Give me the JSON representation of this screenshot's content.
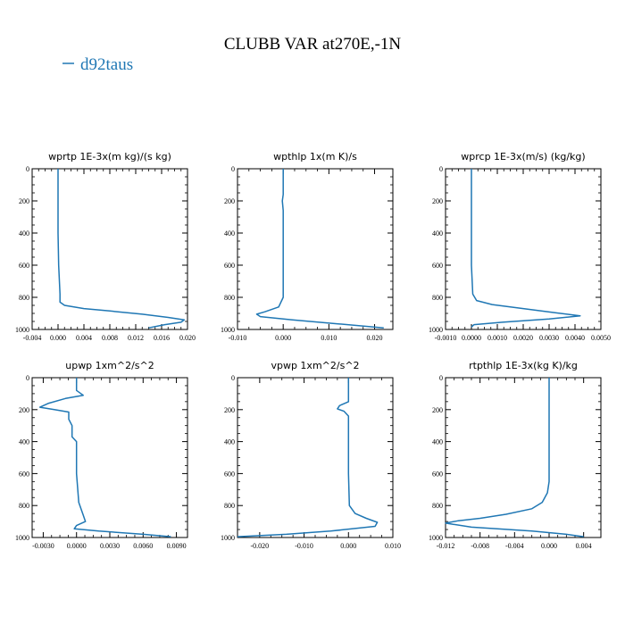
{
  "figure": {
    "title": "CLUBB VAR at270E,-1N",
    "legend_label": "d92taus",
    "line_color": "#1f77b4"
  },
  "chart_data": [
    {
      "type": "line",
      "title": "wprtp  1E-3x(m kg)/(s kg)",
      "series_name": "d92taus",
      "xlim": [
        -0.004,
        0.02
      ],
      "ylim": [
        1000,
        0
      ],
      "x_ticks": [
        -0.004,
        0.0,
        0.004,
        0.008,
        0.012,
        0.016,
        0.02
      ],
      "x_tick_labels": [
        "-0.004",
        "0.000",
        "0.004",
        "0.008",
        "0.012",
        "0.016",
        "0.020"
      ],
      "y_ticks": [
        0,
        200,
        400,
        600,
        800,
        1000
      ],
      "y_tick_labels": [
        "0",
        "200",
        "400",
        "600",
        "800",
        "1000"
      ],
      "points": [
        [
          0.0,
          0
        ],
        [
          0.0,
          200
        ],
        [
          0.0,
          400
        ],
        [
          0.0001,
          600
        ],
        [
          0.0003,
          780
        ],
        [
          0.0003,
          830
        ],
        [
          0.001,
          850
        ],
        [
          0.004,
          870
        ],
        [
          0.008,
          885
        ],
        [
          0.013,
          905
        ],
        [
          0.017,
          925
        ],
        [
          0.0195,
          940
        ],
        [
          0.019,
          955
        ],
        [
          0.0165,
          970
        ],
        [
          0.014,
          990
        ]
      ]
    },
    {
      "type": "line",
      "title": "wpthlp  1x(m K)/s",
      "series_name": "d92taus",
      "xlim": [
        -0.01,
        0.024
      ],
      "ylim": [
        1000,
        0
      ],
      "x_ticks": [
        -0.01,
        0.0,
        0.01,
        0.02
      ],
      "x_tick_labels": [
        "-0.010",
        "0.000",
        "0.010",
        "0.020"
      ],
      "y_ticks": [
        0,
        200,
        400,
        600,
        800,
        1000
      ],
      "y_tick_labels": [
        "0",
        "200",
        "400",
        "600",
        "800",
        "1000"
      ],
      "points": [
        [
          0.0,
          0
        ],
        [
          0.0,
          100
        ],
        [
          0.0,
          160
        ],
        [
          -0.0002,
          200
        ],
        [
          0.0,
          260
        ],
        [
          0.0,
          400
        ],
        [
          0.0,
          600
        ],
        [
          0.0,
          800
        ],
        [
          -0.001,
          860
        ],
        [
          -0.004,
          890
        ],
        [
          -0.0058,
          905
        ],
        [
          -0.005,
          920
        ],
        [
          0.002,
          940
        ],
        [
          0.012,
          965
        ],
        [
          0.022,
          990
        ]
      ]
    },
    {
      "type": "line",
      "title": "wprcp  1E-3x(m/s) (kg/kg)",
      "series_name": "d92taus",
      "xlim": [
        -0.001,
        0.005
      ],
      "ylim": [
        1000,
        0
      ],
      "x_ticks": [
        -0.001,
        0.0,
        0.001,
        0.002,
        0.003,
        0.004,
        0.005
      ],
      "x_tick_labels": [
        "-0.0010",
        "0.0000",
        "0.0010",
        "0.0020",
        "0.0030",
        "0.0040",
        "0.0050"
      ],
      "y_ticks": [
        0,
        200,
        400,
        600,
        800,
        1000
      ],
      "y_tick_labels": [
        "0",
        "200",
        "400",
        "600",
        "800",
        "1000"
      ],
      "points": [
        [
          0.0,
          0
        ],
        [
          0.0,
          200
        ],
        [
          0.0,
          400
        ],
        [
          0.0,
          600
        ],
        [
          5e-05,
          780
        ],
        [
          0.0002,
          820
        ],
        [
          0.0008,
          845
        ],
        [
          0.002,
          870
        ],
        [
          0.0032,
          895
        ],
        [
          0.0042,
          915
        ],
        [
          0.003,
          935
        ],
        [
          0.0012,
          955
        ],
        [
          0.0001,
          970
        ],
        [
          0.0,
          985
        ]
      ]
    },
    {
      "type": "line",
      "title": "upwp  1xm^2/s^2",
      "series_name": "d92taus",
      "xlim": [
        -0.004,
        0.01
      ],
      "ylim": [
        1000,
        0
      ],
      "x_ticks": [
        -0.003,
        0.0,
        0.003,
        0.006,
        0.009
      ],
      "x_tick_labels": [
        "-0.0030",
        "0.0000",
        "0.0030",
        "0.0060",
        "0.0090"
      ],
      "y_ticks": [
        0,
        200,
        400,
        600,
        800,
        1000
      ],
      "y_tick_labels": [
        "0",
        "200",
        "400",
        "600",
        "800",
        "1000"
      ],
      "points": [
        [
          0.0,
          0
        ],
        [
          0.0,
          80
        ],
        [
          0.0006,
          110
        ],
        [
          -0.001,
          130
        ],
        [
          -0.0025,
          160
        ],
        [
          -0.0033,
          185
        ],
        [
          -0.002,
          200
        ],
        [
          -0.0007,
          215
        ],
        [
          -0.0007,
          260
        ],
        [
          -0.0004,
          300
        ],
        [
          -0.0004,
          370
        ],
        [
          0.0,
          400
        ],
        [
          0.0,
          450
        ],
        [
          0.0,
          600
        ],
        [
          0.0002,
          780
        ],
        [
          0.0006,
          860
        ],
        [
          0.0008,
          900
        ],
        [
          0.0,
          925
        ],
        [
          -0.0002,
          945
        ],
        [
          0.002,
          960
        ],
        [
          0.006,
          980
        ],
        [
          0.0085,
          995
        ]
      ]
    },
    {
      "type": "line",
      "title": "vpwp  1xm^2/s^2",
      "series_name": "d92taus",
      "xlim": [
        -0.025,
        0.01
      ],
      "ylim": [
        1000,
        0
      ],
      "x_ticks": [
        -0.02,
        -0.01,
        0.0,
        0.01
      ],
      "x_tick_labels": [
        "-0.020",
        "-0.010",
        "0.000",
        "0.010"
      ],
      "y_ticks": [
        0,
        200,
        400,
        600,
        800,
        1000
      ],
      "y_tick_labels": [
        "0",
        "200",
        "400",
        "600",
        "800",
        "1000"
      ],
      "points": [
        [
          0.0,
          0
        ],
        [
          0.0,
          150
        ],
        [
          -0.002,
          175
        ],
        [
          -0.0025,
          195
        ],
        [
          -0.001,
          210
        ],
        [
          0.0,
          240
        ],
        [
          0.0,
          300
        ],
        [
          0.0,
          600
        ],
        [
          0.0002,
          800
        ],
        [
          0.0015,
          850
        ],
        [
          0.004,
          880
        ],
        [
          0.0065,
          905
        ],
        [
          0.006,
          930
        ],
        [
          -0.004,
          960
        ],
        [
          -0.014,
          980
        ],
        [
          -0.025,
          995
        ]
      ]
    },
    {
      "type": "line",
      "title": "rtpthlp  1E-3x(kg K)/kg",
      "series_name": "d92taus",
      "xlim": [
        -0.012,
        0.006
      ],
      "ylim": [
        1000,
        0
      ],
      "x_ticks": [
        -0.012,
        -0.008,
        -0.004,
        0.0,
        0.004
      ],
      "x_tick_labels": [
        "-0.012",
        "-0.008",
        "-0.004",
        "0.000",
        "0.004"
      ],
      "y_ticks": [
        0,
        200,
        400,
        600,
        800,
        1000
      ],
      "y_tick_labels": [
        "0",
        "200",
        "400",
        "600",
        "800",
        "1000"
      ],
      "points": [
        [
          0.0,
          0
        ],
        [
          0.0,
          300
        ],
        [
          0.0,
          500
        ],
        [
          0.0,
          650
        ],
        [
          -0.0002,
          720
        ],
        [
          -0.0008,
          780
        ],
        [
          -0.002,
          820
        ],
        [
          -0.005,
          855
        ],
        [
          -0.008,
          880
        ],
        [
          -0.0105,
          895
        ],
        [
          -0.012,
          910
        ],
        [
          -0.009,
          935
        ],
        [
          -0.002,
          960
        ],
        [
          0.002,
          980
        ],
        [
          0.004,
          995
        ]
      ]
    }
  ]
}
